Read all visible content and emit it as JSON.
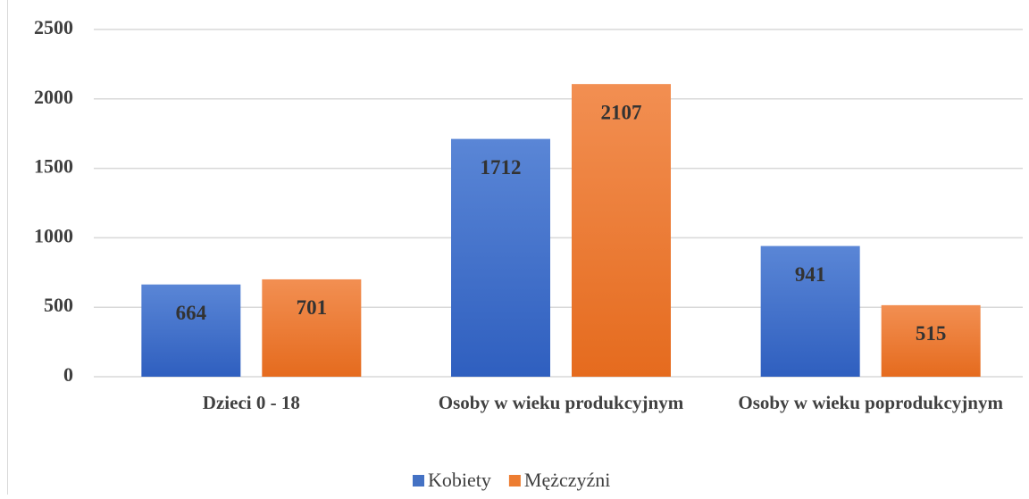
{
  "chart_data": {
    "type": "bar",
    "categories": [
      "Dzieci 0 - 18",
      "Osoby w wieku produkcyjnym",
      "Osoby w wieku poprodukcyjnym"
    ],
    "series": [
      {
        "name": "Kobiety",
        "color": "#4472c4",
        "values": [
          664,
          1712,
          941
        ]
      },
      {
        "name": "Mężczyźni",
        "color": "#ed7d31",
        "values": [
          701,
          2107,
          515
        ]
      }
    ],
    "ylim": [
      0,
      2500
    ],
    "yticks": [
      0,
      500,
      1000,
      1500,
      2000,
      2500
    ],
    "grid": true,
    "legend": "bottom"
  }
}
